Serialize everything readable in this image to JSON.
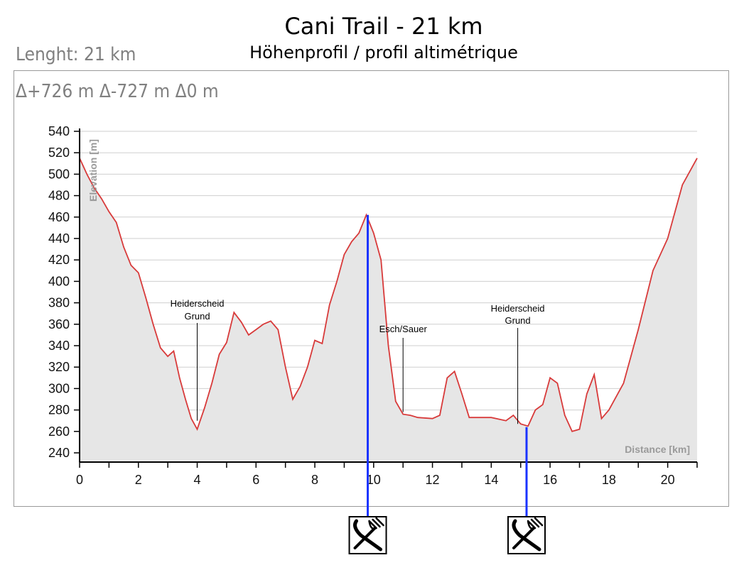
{
  "header": {
    "title": "Cani Trail - 21 km",
    "subtitle": "Höhenprofil / profil altimétrique",
    "length": "Lenght: 21 km",
    "stats": "Δ+726 m  Δ-727 m  Δ0 m"
  },
  "chart_data": {
    "type": "area",
    "xlabel": "Distance [km]",
    "ylabel": "Elevation [m]",
    "xlim": [
      0,
      21
    ],
    "ylim": [
      240,
      540
    ],
    "x_ticks": [
      0,
      2,
      4,
      6,
      8,
      10,
      12,
      14,
      16,
      18,
      20
    ],
    "y_ticks": [
      240,
      260,
      280,
      300,
      320,
      340,
      360,
      380,
      400,
      420,
      440,
      460,
      480,
      500,
      520,
      540
    ],
    "grid": true,
    "colors": {
      "line": "#d83a3a",
      "fill": "#e6e6e6",
      "marker": "#1a33ff",
      "grid": "#cfcfcf"
    },
    "series": [
      {
        "x": [
          0,
          0.25,
          0.5,
          0.75,
          1.0,
          1.25,
          1.5,
          1.75,
          2.0,
          2.25,
          2.5,
          2.75,
          3.0,
          3.2,
          3.4,
          3.6,
          3.8,
          4.0,
          4.25,
          4.5,
          4.75,
          5.0,
          5.25,
          5.5,
          5.75,
          6.0,
          6.25,
          6.5,
          6.75,
          7.0,
          7.25,
          7.5,
          7.75,
          8.0,
          8.25,
          8.5,
          8.75,
          9.0,
          9.25,
          9.5,
          9.75,
          10.0,
          10.25,
          10.5,
          10.75,
          11.0,
          11.25,
          11.5,
          12.0,
          12.25,
          12.5,
          12.75,
          13.0,
          13.25,
          13.5,
          14.0,
          14.5,
          14.75,
          15.0,
          15.25,
          15.5,
          15.75,
          16.0,
          16.25,
          16.5,
          16.75,
          17.0,
          17.25,
          17.5,
          17.75,
          18.0,
          18.5,
          19.0,
          19.5,
          20.0,
          20.5,
          21.0
        ],
        "y": [
          515,
          500,
          487,
          477,
          465,
          455,
          432,
          415,
          408,
          385,
          360,
          338,
          330,
          335,
          310,
          290,
          272,
          262,
          282,
          305,
          332,
          343,
          371,
          362,
          350,
          355,
          360,
          363,
          355,
          320,
          290,
          302,
          320,
          345,
          342,
          378,
          400,
          425,
          437,
          445,
          462,
          445,
          420,
          340,
          288,
          276,
          275,
          273,
          272,
          275,
          310,
          316,
          295,
          273,
          273,
          273,
          270,
          275,
          267,
          265,
          280,
          285,
          310,
          305,
          275,
          260,
          262,
          295,
          313,
          272,
          280,
          305,
          355,
          410,
          440,
          490,
          515
        ]
      }
    ],
    "annotations": [
      {
        "label_line1": "Heiderscheid",
        "label_line2": "Grund",
        "x": 4.0,
        "y": 270
      },
      {
        "label_line1": "Esch/Sauer",
        "label_line2": "",
        "x": 11.0,
        "y": 278
      },
      {
        "label_line1": "Heiderscheid",
        "label_line2": "Grund",
        "x": 14.9,
        "y": 267
      }
    ],
    "food_markers": [
      {
        "x": 9.8,
        "y": 462,
        "icon": "fork-knife-icon"
      },
      {
        "x": 15.2,
        "y": 264,
        "icon": "fork-knife-icon"
      }
    ]
  }
}
